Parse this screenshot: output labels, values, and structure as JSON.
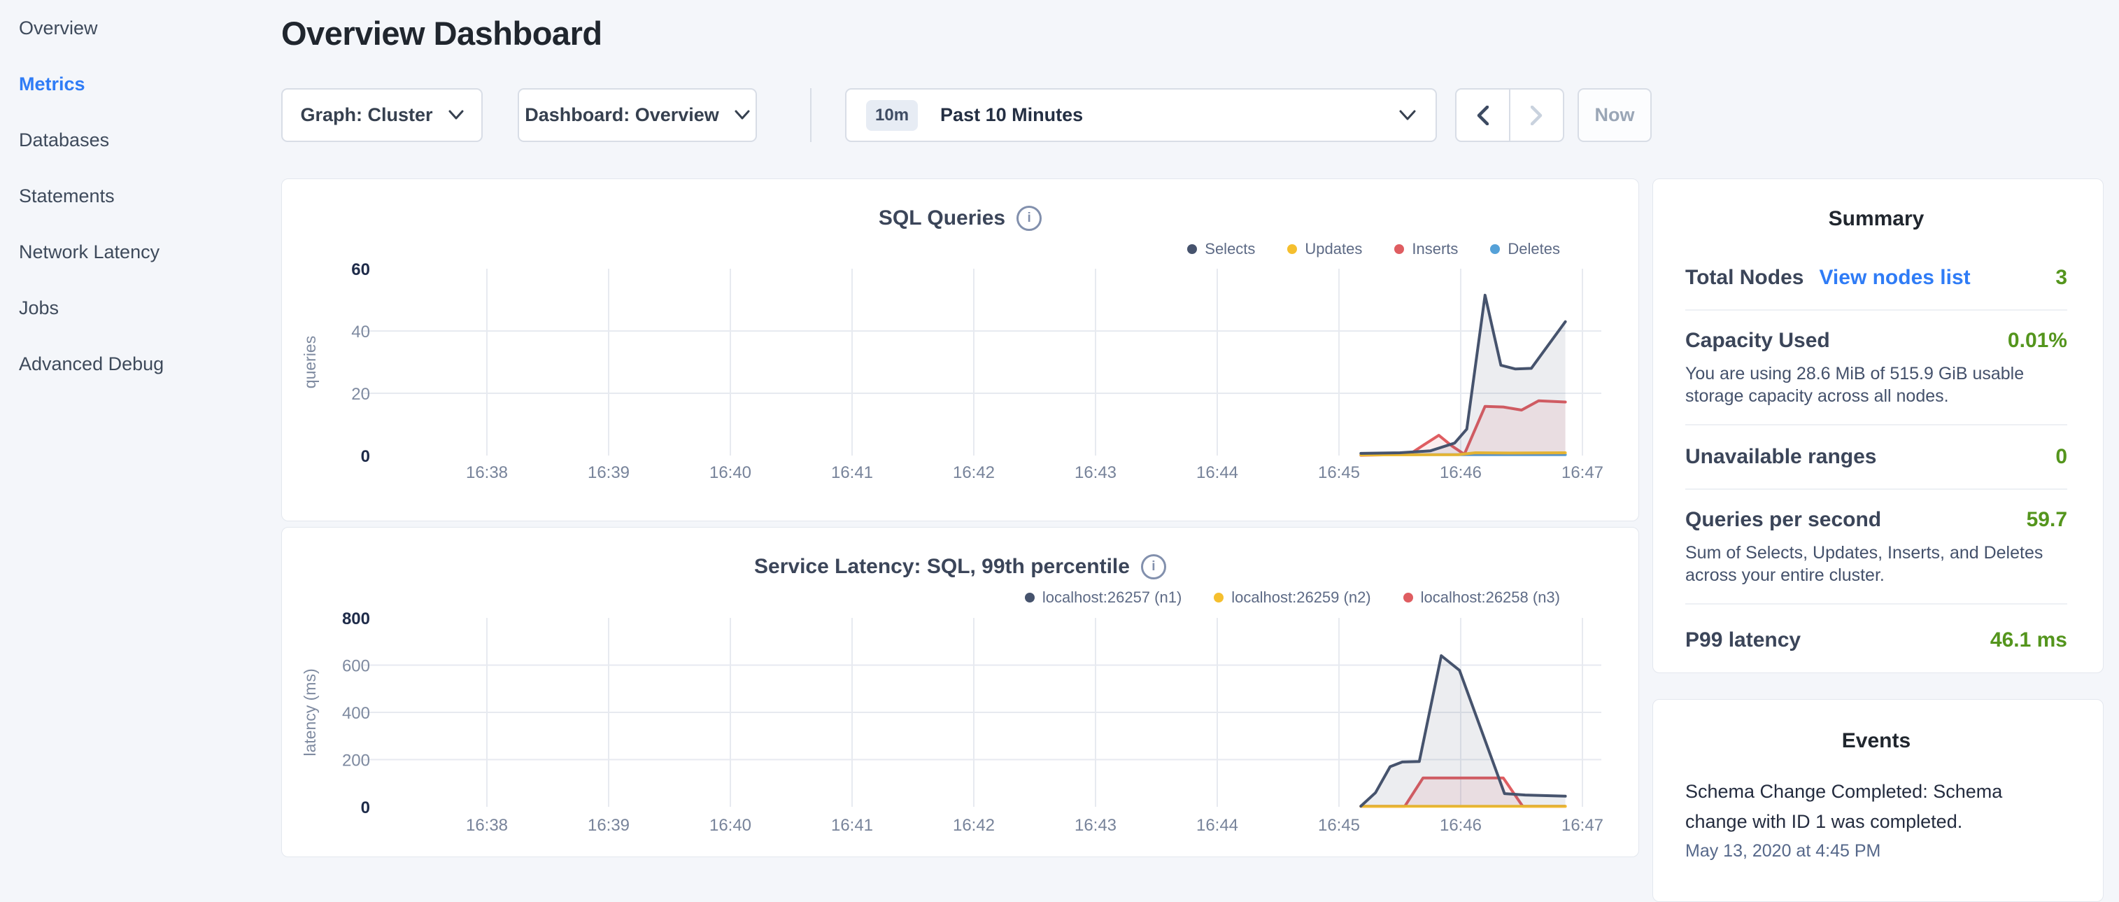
{
  "sidebar": {
    "items": [
      {
        "label": "Overview",
        "active": false
      },
      {
        "label": "Metrics",
        "active": true
      },
      {
        "label": "Databases",
        "active": false
      },
      {
        "label": "Statements",
        "active": false
      },
      {
        "label": "Network Latency",
        "active": false
      },
      {
        "label": "Jobs",
        "active": false
      },
      {
        "label": "Advanced Debug",
        "active": false
      }
    ]
  },
  "header": {
    "title": "Overview Dashboard"
  },
  "controls": {
    "graph_label": "Graph: Cluster",
    "dashboard_label": "Dashboard: Overview",
    "range_badge": "10m",
    "range_label": "Past 10 Minutes",
    "now_label": "Now"
  },
  "colors": {
    "accent_blue": "#2f7cf6",
    "value_green": "#54951d",
    "series_navy": "#46536d",
    "series_yellow": "#f5bf2e",
    "series_red": "#df5d61",
    "series_blue": "#55a1d8"
  },
  "summary": {
    "title": "Summary",
    "rows": [
      {
        "label": "Total Nodes",
        "link": "View nodes list",
        "value": "3"
      },
      {
        "label": "Capacity Used",
        "value": "0.01%",
        "desc": "You are using 28.6 MiB of 515.9 GiB usable storage capacity across all nodes."
      },
      {
        "label": "Unavailable ranges",
        "value": "0"
      },
      {
        "label": "Queries per second",
        "value": "59.7",
        "desc": "Sum of Selects, Updates, Inserts, and Deletes across your entire cluster."
      },
      {
        "label": "P99 latency",
        "value": "46.1 ms"
      }
    ]
  },
  "events": {
    "title": "Events",
    "items": [
      {
        "text": "Schema Change Completed: Schema change with ID 1 was completed.",
        "time": "May 13, 2020 at 4:45 PM"
      }
    ]
  },
  "chart_data": [
    {
      "type": "area",
      "title": "SQL Queries",
      "xlabel": "",
      "ylabel": "queries",
      "ylim": [
        0,
        60
      ],
      "y_ticks": [
        60,
        40,
        20,
        0
      ],
      "x_ticks": [
        "16:38",
        "16:39",
        "16:40",
        "16:41",
        "16:42",
        "16:43",
        "16:44",
        "16:45",
        "16:46",
        "16:47"
      ],
      "grid": true,
      "legend_position": "top-right",
      "x_unit": "minutes after 16:38",
      "series": [
        {
          "name": "Selects",
          "color": "#46536d",
          "fill": true,
          "points": [
            [
              7.18,
              0.7
            ],
            [
              7.5,
              0.9
            ],
            [
              7.75,
              1.5
            ],
            [
              7.95,
              4.0
            ],
            [
              8.05,
              8.5
            ],
            [
              8.2,
              51.5
            ],
            [
              8.33,
              29.0
            ],
            [
              8.45,
              27.8
            ],
            [
              8.58,
              28.0
            ],
            [
              8.86,
              43.0
            ]
          ]
        },
        {
          "name": "Updates",
          "color": "#f5bf2e",
          "fill": false,
          "points": [
            [
              7.18,
              0.2
            ],
            [
              7.98,
              0.3
            ],
            [
              8.12,
              0.9
            ],
            [
              8.4,
              0.8
            ],
            [
              8.86,
              0.9
            ]
          ]
        },
        {
          "name": "Inserts",
          "color": "#df5d61",
          "fill": true,
          "points": [
            [
              7.18,
              0.1
            ],
            [
              7.58,
              0.4
            ],
            [
              7.7,
              3.5
            ],
            [
              7.82,
              6.5
            ],
            [
              7.93,
              3.0
            ],
            [
              8.03,
              0.4
            ],
            [
              8.2,
              15.8
            ],
            [
              8.35,
              15.6
            ],
            [
              8.5,
              14.6
            ],
            [
              8.64,
              17.6
            ],
            [
              8.86,
              17.2
            ]
          ]
        },
        {
          "name": "Deletes",
          "color": "#55a1d8",
          "fill": false,
          "points": [
            [
              7.18,
              0.3
            ],
            [
              8.86,
              0.3
            ]
          ]
        }
      ]
    },
    {
      "type": "area",
      "title": "Service Latency: SQL, 99th percentile",
      "xlabel": "",
      "ylabel": "latency (ms)",
      "ylim": [
        0,
        800
      ],
      "y_ticks": [
        800,
        600,
        400,
        200,
        0
      ],
      "x_ticks": [
        "16:38",
        "16:39",
        "16:40",
        "16:41",
        "16:42",
        "16:43",
        "16:44",
        "16:45",
        "16:46",
        "16:47"
      ],
      "grid": true,
      "legend_position": "top-right",
      "x_unit": "minutes after 16:38",
      "series": [
        {
          "name": "localhost:26257 (n1)",
          "color": "#46536d",
          "fill": true,
          "points": [
            [
              7.18,
              3
            ],
            [
              7.3,
              60
            ],
            [
              7.42,
              170
            ],
            [
              7.52,
              190
            ],
            [
              7.66,
              192
            ],
            [
              7.84,
              640
            ],
            [
              7.99,
              578
            ],
            [
              8.36,
              56
            ],
            [
              8.53,
              50
            ],
            [
              8.86,
              45
            ]
          ]
        },
        {
          "name": "localhost:26259 (n2)",
          "color": "#f5bf2e",
          "fill": false,
          "points": [
            [
              7.18,
              2
            ],
            [
              8.86,
              2
            ]
          ]
        },
        {
          "name": "localhost:26258 (n3)",
          "color": "#df5d61",
          "fill": true,
          "points": [
            [
              7.18,
              2
            ],
            [
              7.54,
              2
            ],
            [
              7.69,
              122
            ],
            [
              8.35,
              122
            ],
            [
              8.51,
              2
            ],
            [
              8.86,
              2
            ]
          ]
        }
      ]
    }
  ]
}
